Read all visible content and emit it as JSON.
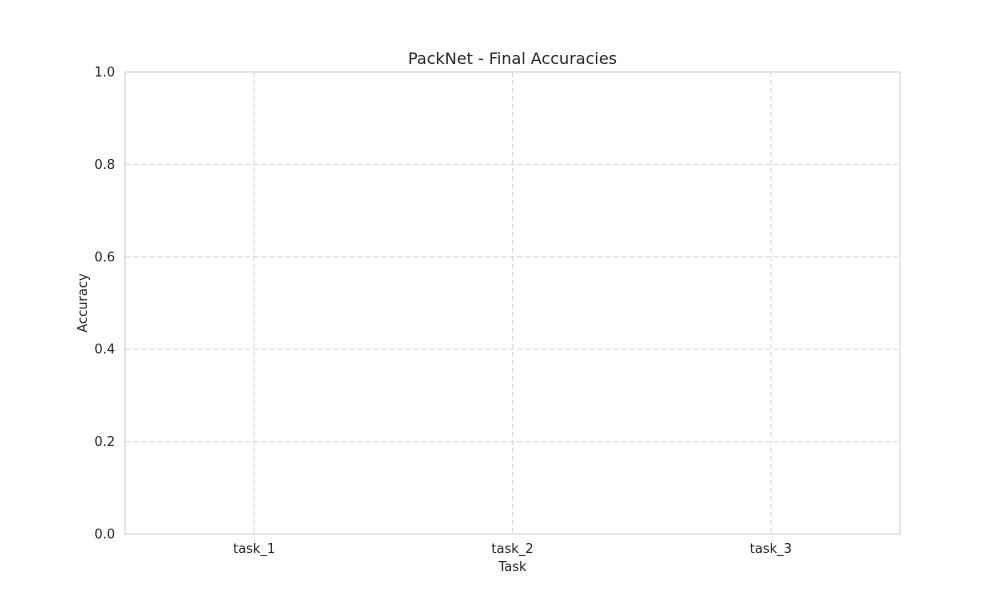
{
  "chart_data": {
    "type": "bar",
    "title": "PackNet - Final Accuracies",
    "xlabel": "Task",
    "ylabel": "Accuracy",
    "categories": [
      "task_1",
      "task_2",
      "task_3"
    ],
    "values": [
      0.0,
      0.0,
      0.0
    ],
    "ylim": [
      0,
      1
    ],
    "yticks": [
      "0.0",
      "0.2",
      "0.4",
      "0.6",
      "0.8",
      "1.0"
    ],
    "grid": true,
    "colors": {
      "grid": "#d9d9d9",
      "frame": "#cccccc",
      "text": "#262626",
      "bar": "#4c72b0"
    }
  }
}
